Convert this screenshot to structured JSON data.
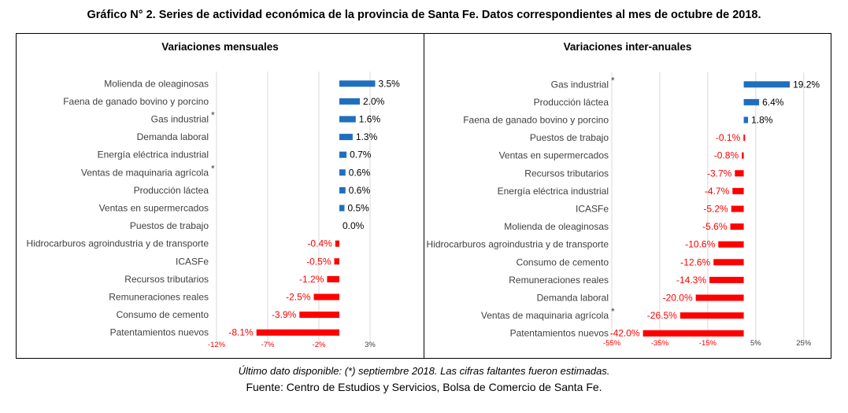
{
  "title": "Gráfico N° 2. Series de actividad económica de la provincia de Santa Fe. Datos correspondientes al mes de octubre de 2018.",
  "footnote": "Último dato disponible: (*) septiembre 2018. Las cifras faltantes fueron estimadas.",
  "source": "Fuente: Centro de Estudios y Servicios, Bolsa de Comercio de Santa Fe.",
  "colors": {
    "positive": "#1f6fbf",
    "negative": "#ff0000",
    "grid": "#d9d9d9",
    "label": "#404040"
  },
  "chart_data": [
    {
      "type": "bar",
      "orientation": "horizontal",
      "title": "Variaciones mensuales",
      "categories": [
        "Molienda de oleaginosas",
        "Faena de ganado bovino y porcino",
        "Gas industrial",
        "Demanda laboral",
        "Energía eléctrica industrial",
        "Ventas de maquinaria agrícola",
        "Producción láctea",
        "Ventas en supermercados",
        "Puestos de trabajo",
        "Hidrocarburos agroindustria y de transporte",
        "ICASFe",
        "Recursos tributarios",
        "Remuneraciones reales",
        "Consumo de cemento",
        "Patentamientos nuevos"
      ],
      "values": [
        3.5,
        2.0,
        1.6,
        1.3,
        0.7,
        0.6,
        0.6,
        0.5,
        0.0,
        -0.4,
        -0.5,
        -1.2,
        -2.5,
        -3.9,
        -8.1
      ],
      "value_labels": [
        "3.5%",
        "2.0%",
        "1.6%",
        "1.3%",
        "0.7%",
        "0.6%",
        "0.6%",
        "0.5%",
        "0.0%",
        "-0.4%",
        "-0.5%",
        "-1.2%",
        "-2.5%",
        "-3.9%",
        "-8.1%"
      ],
      "asterisk": [
        false,
        false,
        true,
        false,
        false,
        true,
        false,
        false,
        false,
        false,
        false,
        false,
        false,
        false,
        false
      ],
      "xticks": [
        -12,
        -7,
        -2,
        3
      ],
      "xtick_labels": [
        "-12%",
        "-7%",
        "-2%",
        "3%"
      ],
      "xlim": [
        -12,
        6
      ]
    },
    {
      "type": "bar",
      "orientation": "horizontal",
      "title": "Variaciones inter-anuales",
      "categories": [
        "Gas industrial",
        "Producción láctea",
        "Faena de ganado bovino y porcino",
        "Puestos de trabajo",
        "Ventas en supermercados",
        "Recursos tributarios",
        "Energía eléctrica industrial",
        "ICASFe",
        "Molienda de oleaginosas",
        "Hidrocarburos agroindustria y de transporte",
        "Consumo de cemento",
        "Remuneraciones reales",
        "Demanda laboral",
        "Ventas de maquinaria agrícola",
        "Patentamientos nuevos"
      ],
      "values": [
        19.2,
        6.4,
        1.8,
        -0.1,
        -0.8,
        -3.7,
        -4.7,
        -5.2,
        -5.6,
        -10.6,
        -12.6,
        -14.3,
        -20.0,
        -26.5,
        -42.0
      ],
      "value_labels": [
        "19.2%",
        "6.4%",
        "1.8%",
        "-0.1%",
        "-0.8%",
        "-3.7%",
        "-4.7%",
        "-5.2%",
        "-5.6%",
        "-10.6%",
        "-12.6%",
        "-14.3%",
        "-20.0%",
        "-26.5%",
        "-42.0%"
      ],
      "asterisk": [
        true,
        false,
        false,
        false,
        false,
        false,
        false,
        false,
        false,
        false,
        false,
        false,
        false,
        true,
        false
      ],
      "xticks": [
        -55,
        -35,
        -15,
        5,
        25
      ],
      "xtick_labels": [
        "-55%",
        "-35%",
        "-15%",
        "5%",
        "25%"
      ],
      "xlim": [
        -55,
        30
      ]
    }
  ]
}
